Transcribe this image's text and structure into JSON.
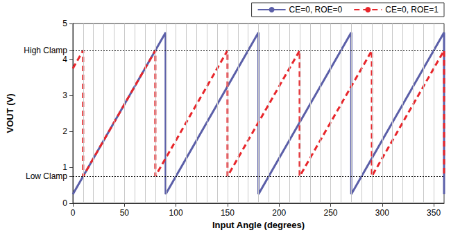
{
  "chart_data": {
    "type": "line",
    "x_label": "Input Angle (degrees)",
    "y_label": "VOUT (V)",
    "xlim": [
      0,
      360
    ],
    "xticks": [
      0,
      50,
      100,
      150,
      200,
      250,
      300,
      350
    ],
    "ylim": [
      0,
      5
    ],
    "yticks": [
      0,
      {
        "value": 0.75,
        "label": "Low Clamp"
      },
      1,
      2,
      3,
      4,
      {
        "value": 4.25,
        "label": "High Clamp"
      },
      5
    ],
    "grid": true,
    "legend": "upper right",
    "series": [
      {
        "name": "CE=0, ROE=0",
        "color": "#5b5fa8",
        "line_style": "solid",
        "x": [
          0,
          90,
          90,
          180,
          180,
          270,
          270,
          360,
          360
        ],
        "values": [
          0.25,
          4.75,
          0.25,
          4.75,
          0.25,
          4.75,
          0.25,
          4.75,
          0.25
        ]
      },
      {
        "name": "CE=0, ROE=1",
        "color": "#e8262b",
        "line_style": "dashed",
        "x": [
          0,
          10,
          10,
          80,
          80,
          150,
          150,
          220,
          220,
          290,
          290,
          360,
          360
        ],
        "values": [
          3.75,
          4.25,
          0.75,
          4.25,
          0.75,
          4.25,
          0.75,
          4.25,
          0.75,
          4.25,
          0.75,
          4.25,
          0.75
        ]
      }
    ]
  }
}
